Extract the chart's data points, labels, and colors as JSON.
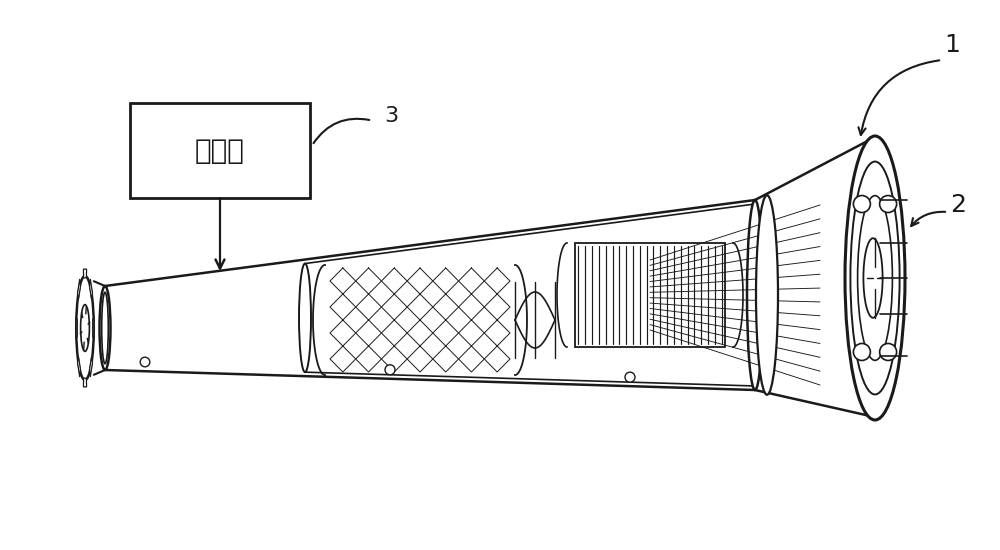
{
  "bg_color": "#ffffff",
  "line_color": "#1a1a1a",
  "box_label": "控制部",
  "label_1": "1",
  "label_2": "2",
  "label_3": "3",
  "font_size_box": 20,
  "font_size_label": 16,
  "figsize": [
    10.0,
    5.5
  ],
  "dpi": 100
}
